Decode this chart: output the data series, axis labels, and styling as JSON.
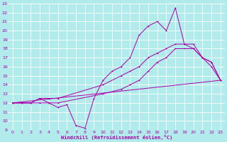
{
  "background_color": "#b2ebeb",
  "grid_color": "#c8e8e8",
  "line_color": "#aa00aa",
  "xlabel": "Windchill (Refroidissement éolien,°C)",
  "xlim": [
    -0.5,
    23.5
  ],
  "ylim": [
    9,
    23
  ],
  "xticks": [
    0,
    1,
    2,
    3,
    4,
    5,
    6,
    7,
    8,
    9,
    10,
    11,
    12,
    13,
    14,
    15,
    16,
    17,
    18,
    19,
    20,
    21,
    22,
    23
  ],
  "yticks": [
    9,
    10,
    11,
    12,
    13,
    14,
    15,
    16,
    17,
    18,
    19,
    20,
    21,
    22,
    23
  ],
  "line1_x": [
    0,
    1,
    2,
    3,
    4,
    5,
    6,
    7,
    8,
    9,
    10,
    11,
    12,
    13,
    14,
    15,
    16,
    17,
    18,
    19,
    20,
    21,
    22,
    23
  ],
  "line1_y": [
    12,
    12,
    12,
    12.5,
    12,
    11.5,
    11.8,
    9.5,
    9.2,
    12.5,
    14.5,
    15.5,
    16,
    17,
    19.5,
    20.5,
    21,
    20,
    22.5,
    18.5,
    18,
    17,
    16,
    14.5
  ],
  "line2_x": [
    0,
    1,
    2,
    3,
    4,
    5,
    10,
    12,
    13,
    14,
    15,
    16,
    17,
    18,
    19,
    20,
    21,
    22,
    23
  ],
  "line2_y": [
    12,
    12,
    12,
    12.5,
    12.5,
    12.5,
    14,
    15,
    15.5,
    16,
    17,
    17.5,
    18,
    18.5,
    18.5,
    18.5,
    17,
    16.5,
    14.5
  ],
  "line3_x": [
    0,
    23
  ],
  "line3_y": [
    12,
    14.5
  ],
  "line4_x": [
    0,
    1,
    2,
    3,
    4,
    5,
    10,
    12,
    13,
    14,
    15,
    16,
    17,
    18,
    19,
    20,
    21,
    22,
    23
  ],
  "line4_y": [
    12,
    12,
    12,
    12,
    12,
    12,
    13,
    13.5,
    14,
    14.5,
    15.5,
    16.5,
    17,
    18,
    18,
    18,
    17,
    16.5,
    14.5
  ]
}
